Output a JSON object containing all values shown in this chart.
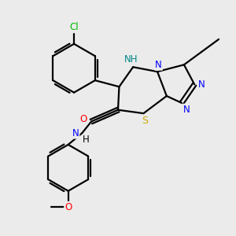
{
  "background_color": "#ebebeb",
  "atom_colors": {
    "C": "#000000",
    "N": "#0000ff",
    "O": "#ff0000",
    "S": "#ccaa00",
    "Cl": "#00bb00",
    "H_teal": "#008888",
    "H_black": "#000000"
  },
  "bond_color": "#000000",
  "line_width": 1.6,
  "figsize": [
    3.0,
    3.0
  ],
  "dpi": 100
}
